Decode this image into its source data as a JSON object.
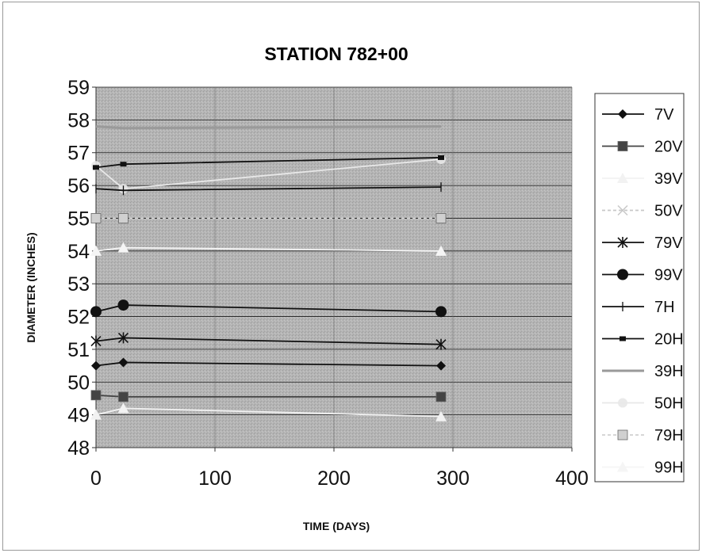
{
  "chart_data": {
    "type": "line",
    "title": "STATION 782+00",
    "xlabel": "TIME (DAYS)",
    "ylabel": "DIAMETER (INCHES)",
    "xlim": [
      0,
      400
    ],
    "ylim": [
      48,
      59
    ],
    "xticks": [
      0,
      100,
      200,
      300,
      400
    ],
    "yticks": [
      48,
      49,
      50,
      51,
      52,
      53,
      54,
      55,
      56,
      57,
      58,
      59
    ],
    "grid": "horizontal",
    "legend_position": "right",
    "series": [
      {
        "name": "7V",
        "color": "#111111",
        "marker": "diamond",
        "x": [
          0,
          23,
          290
        ],
        "y": [
          50.5,
          50.6,
          50.5
        ]
      },
      {
        "name": "20V",
        "color": "#444444",
        "marker": "square",
        "x": [
          0,
          23,
          290
        ],
        "y": [
          49.6,
          49.55,
          49.55
        ]
      },
      {
        "name": "39V",
        "color": "#f2f2f2",
        "marker": "triangle",
        "x": [
          0,
          23,
          290
        ],
        "y": [
          49.0,
          49.2,
          48.95
        ]
      },
      {
        "name": "50V",
        "color": "#c8c8c8",
        "marker": "x",
        "x": [
          0,
          23,
          290
        ],
        "y": [
          55.0,
          55.0,
          55.0
        ]
      },
      {
        "name": "79V",
        "color": "#111111",
        "marker": "star",
        "x": [
          0,
          23,
          290
        ],
        "y": [
          51.25,
          51.35,
          51.15
        ]
      },
      {
        "name": "99V",
        "color": "#111111",
        "marker": "circle",
        "x": [
          0,
          23,
          290
        ],
        "y": [
          52.15,
          52.35,
          52.15
        ]
      },
      {
        "name": "7H",
        "color": "#111111",
        "marker": "plus",
        "x": [
          0,
          23,
          290
        ],
        "y": [
          55.9,
          55.85,
          55.95
        ]
      },
      {
        "name": "20H",
        "color": "#111111",
        "marker": "bar",
        "x": [
          0,
          23,
          290
        ],
        "y": [
          56.55,
          56.65,
          56.85
        ]
      },
      {
        "name": "39H",
        "color": "#9a9a9a",
        "marker": "none",
        "x": [
          0,
          23,
          290
        ],
        "y": [
          57.8,
          57.75,
          57.8
        ]
      },
      {
        "name": "50H",
        "color": "#e8e8e8",
        "marker": "sparkle",
        "x": [
          0,
          23,
          290
        ],
        "y": [
          56.6,
          55.9,
          56.8
        ]
      },
      {
        "name": "79H",
        "color": "#d0d0d0",
        "marker": "square",
        "x": [
          0,
          23,
          290
        ],
        "y": [
          55.0,
          55.0,
          55.0
        ]
      },
      {
        "name": "99H",
        "color": "#f5f5f5",
        "marker": "triangle",
        "x": [
          0,
          23,
          290
        ],
        "y": [
          54.0,
          54.1,
          54.0
        ]
      }
    ]
  }
}
